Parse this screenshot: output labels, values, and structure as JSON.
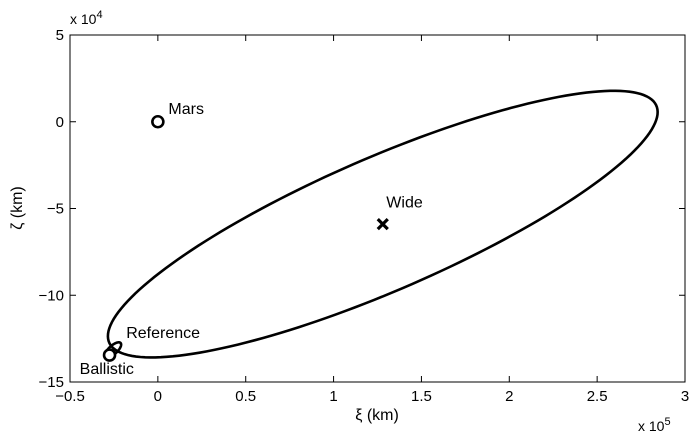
{
  "chart_data": {
    "type": "scatter",
    "title": "",
    "xlabel": "ξ (km)",
    "ylabel": "ζ (km)",
    "x_multiplier_label": "x 10",
    "x_multiplier_exp": "5",
    "y_multiplier_label": "x 10",
    "y_multiplier_exp": "4",
    "xlim": [
      -0.5,
      3.0
    ],
    "ylim": [
      -15,
      5
    ],
    "x_ticks": [
      -0.5,
      0,
      0.5,
      1,
      1.5,
      2,
      2.5,
      3
    ],
    "x_tick_labels": [
      "−0.5",
      "0",
      "0.5",
      "1",
      "1.5",
      "2",
      "2.5",
      "3"
    ],
    "y_ticks": [
      -15,
      -10,
      -5,
      0,
      5
    ],
    "y_tick_labels": [
      "−15",
      "−10",
      "−5",
      "0",
      "5"
    ],
    "grid": false,
    "ellipses": [
      {
        "name": "Wide",
        "center": [
          1.28,
          -5.9
        ],
        "semi_major": 1.715,
        "semi_minor": 0.4,
        "rotation_deg": 24.93,
        "axis_scale": 9.5
      },
      {
        "name": "Reference",
        "center": [
          -0.255,
          -13.15
        ],
        "semi_major": 0.06,
        "semi_minor": 0.025,
        "rotation_deg": 45,
        "axis_scale": 9.5
      }
    ],
    "points": [
      {
        "label": "Mars",
        "x": 0.0,
        "y": 0.0,
        "marker": "circle"
      },
      {
        "label": "Wide",
        "x": 1.28,
        "y": -5.9,
        "marker": "x"
      },
      {
        "label": "Ballistic",
        "x": -0.275,
        "y": -13.45,
        "marker": "circle"
      }
    ],
    "annotations": [
      {
        "text": "Mars",
        "x": 0.06,
        "y": 0.45
      },
      {
        "text": "Wide",
        "x": 1.3,
        "y": -4.95
      },
      {
        "text": "Reference",
        "x": -0.18,
        "y": -12.45
      },
      {
        "text": "Ballistic",
        "x": -0.445,
        "y": -14.55
      }
    ]
  }
}
